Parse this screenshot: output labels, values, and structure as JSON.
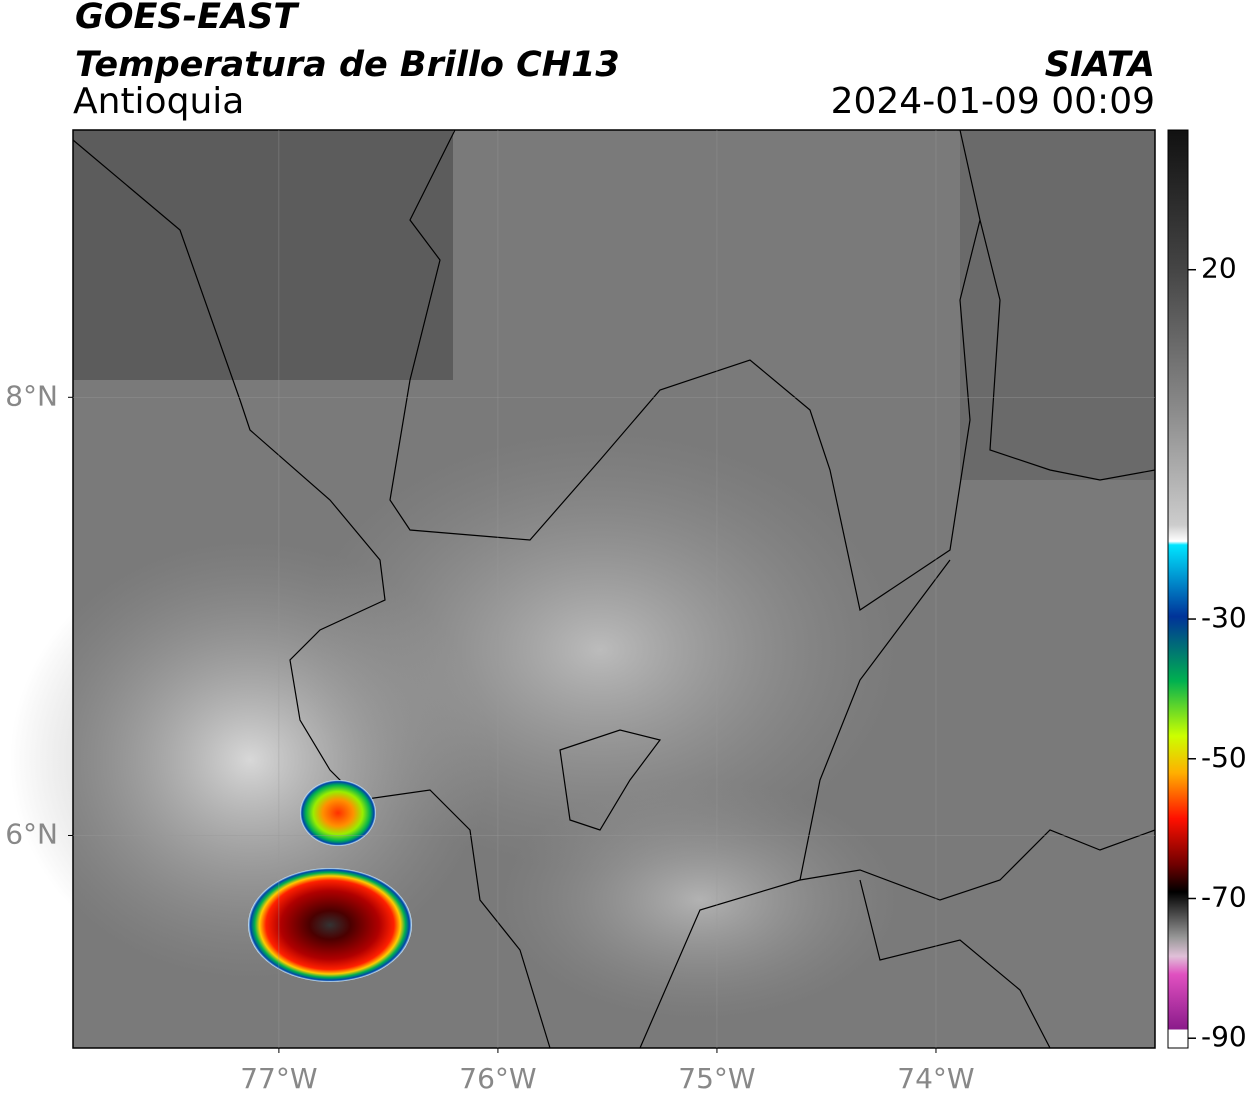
{
  "header": {
    "title": "GOES-EAST",
    "subtitle": "Temperatura de Brillo CH13",
    "region": "Antioquia",
    "source": "SIATA",
    "datetime": "2024-01-09 00:09"
  },
  "map": {
    "xlim": [
      -77.94,
      -73.0
    ],
    "ylim": [
      5.03,
      9.22
    ],
    "xticks": [
      {
        "value": -77,
        "label": "77°W"
      },
      {
        "value": -76,
        "label": "76°W"
      },
      {
        "value": -75,
        "label": "75°W"
      },
      {
        "value": -74,
        "label": "74°W"
      }
    ],
    "yticks": [
      {
        "value": 8,
        "label": "8°N"
      },
      {
        "value": 6,
        "label": "6°N"
      }
    ]
  },
  "colorbar": {
    "lim": [
      -91.4,
      40
    ],
    "ticks": [
      20,
      -30,
      -50,
      -70,
      -90
    ]
  }
}
